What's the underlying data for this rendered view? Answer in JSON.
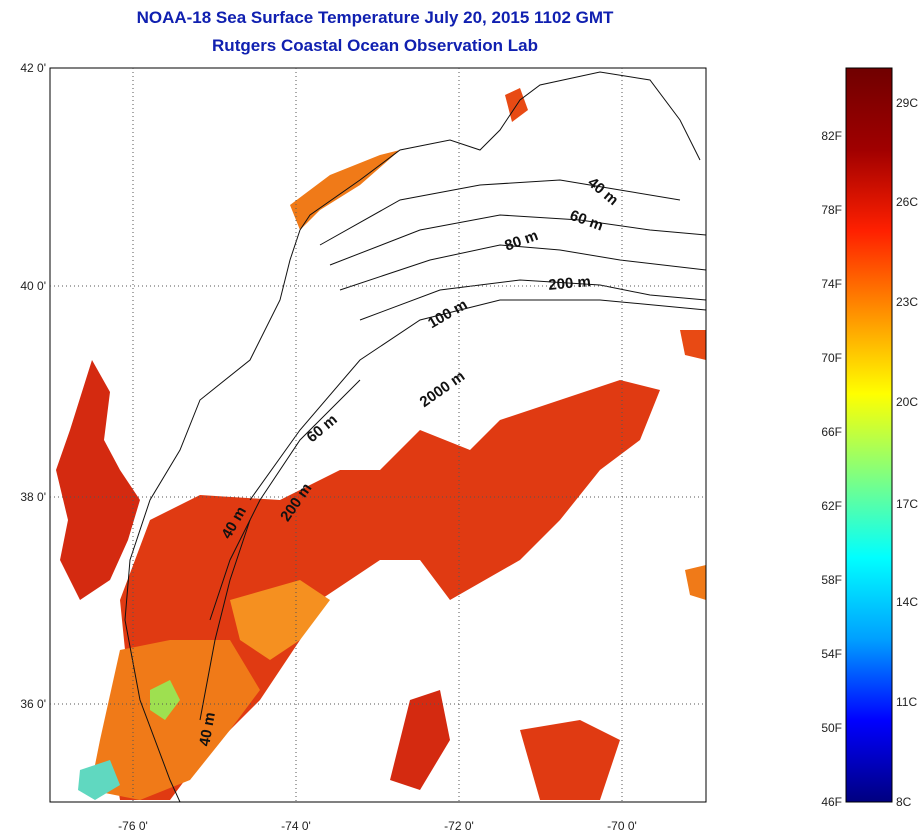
{
  "header": {
    "title_line1": "NOAA-18 Sea Surface Temperature July 20, 2015 1102 GMT",
    "title_line2": "Rutgers Coastal Ocean Observation Lab"
  },
  "map": {
    "lon_ticks": [
      "-76 0'",
      "-74 0'",
      "-72 0'",
      "-70 0'"
    ],
    "lat_ticks": [
      "42 0'",
      "40 0'",
      "38 0'",
      "36 0'"
    ],
    "contour_labels": [
      "40 m",
      "60 m",
      "80 m",
      "200 m",
      "100 m",
      "2000 m",
      "60 m",
      "40 m",
      "200 m",
      "40 m"
    ]
  },
  "colorbar": {
    "fahrenheit": [
      "82F",
      "78F",
      "74F",
      "70F",
      "66F",
      "62F",
      "58F",
      "54F",
      "50F",
      "46F"
    ],
    "celsius": [
      "29C",
      "26C",
      "23C",
      "20C",
      "17C",
      "14C",
      "11C",
      "8C"
    ],
    "colors": [
      "#000080",
      "#0000ff",
      "#00a0ff",
      "#00ffff",
      "#80ff80",
      "#ffff00",
      "#ff9000",
      "#ff2000",
      "#a00000",
      "#700000"
    ]
  }
}
